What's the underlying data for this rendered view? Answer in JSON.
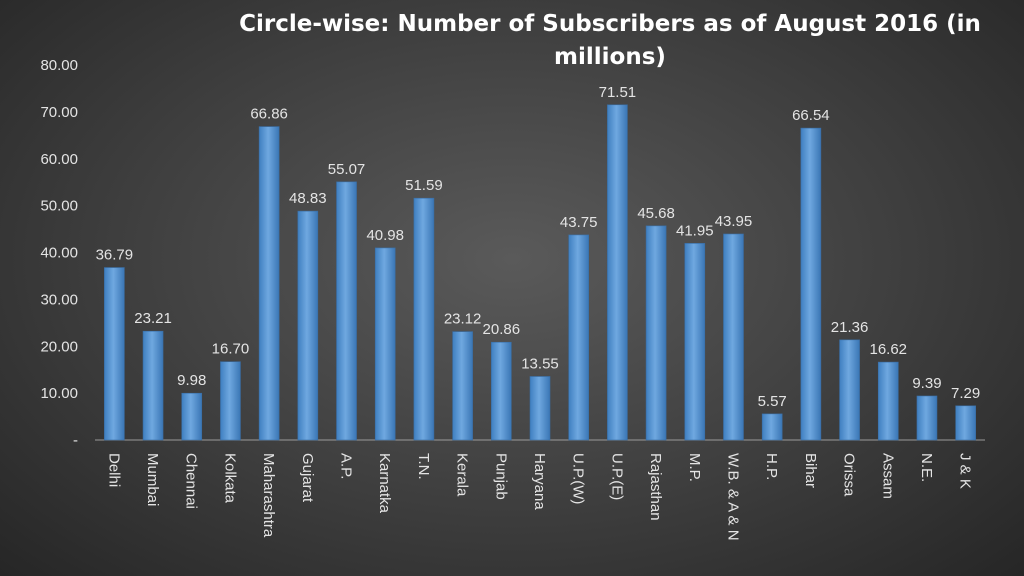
{
  "chart_data": {
    "type": "bar",
    "title_lines": [
      "Circle-wise: Number of Subscribers  as of  August  2016 (in",
      "millions)"
    ],
    "categories": [
      "Delhi",
      "Mumbai",
      "Chennai",
      "Kolkata",
      "Maharashtra",
      "Gujarat",
      "A.P.",
      "Karnatka",
      "T.N.",
      "Kerala",
      "Punjab",
      "Haryana",
      "U.P.(W)",
      "U.P.(E)",
      "Rajasthan",
      "M.P.",
      "W.B. & A & N",
      "H.P.",
      "Bihar",
      "Orissa",
      "Assam",
      "N.E.",
      "J & K"
    ],
    "values": [
      36.79,
      23.21,
      9.98,
      16.7,
      66.86,
      48.83,
      55.07,
      40.98,
      51.59,
      23.12,
      20.86,
      13.55,
      43.75,
      71.51,
      45.68,
      41.95,
      43.95,
      5.57,
      66.54,
      21.36,
      16.62,
      9.39,
      7.29
    ],
    "data_labels": [
      "36.79",
      "23.21",
      "9.98",
      "16.70",
      "66.86",
      "48.83",
      "55.07",
      "40.98",
      "51.59",
      "23.12",
      "20.86",
      "13.55",
      "43.75",
      "71.51",
      "45.68",
      "41.95",
      "43.95",
      "5.57",
      "66.54",
      "21.36",
      "16.62",
      "9.39",
      "7.29"
    ],
    "yticks": [
      "-",
      "10.00",
      "20.00",
      "30.00",
      "40.00",
      "50.00",
      "60.00",
      "70.00",
      "80.00"
    ],
    "ylim": [
      0,
      80
    ],
    "grid": false,
    "legend": "none",
    "bar_color": "#5b9bd5"
  }
}
